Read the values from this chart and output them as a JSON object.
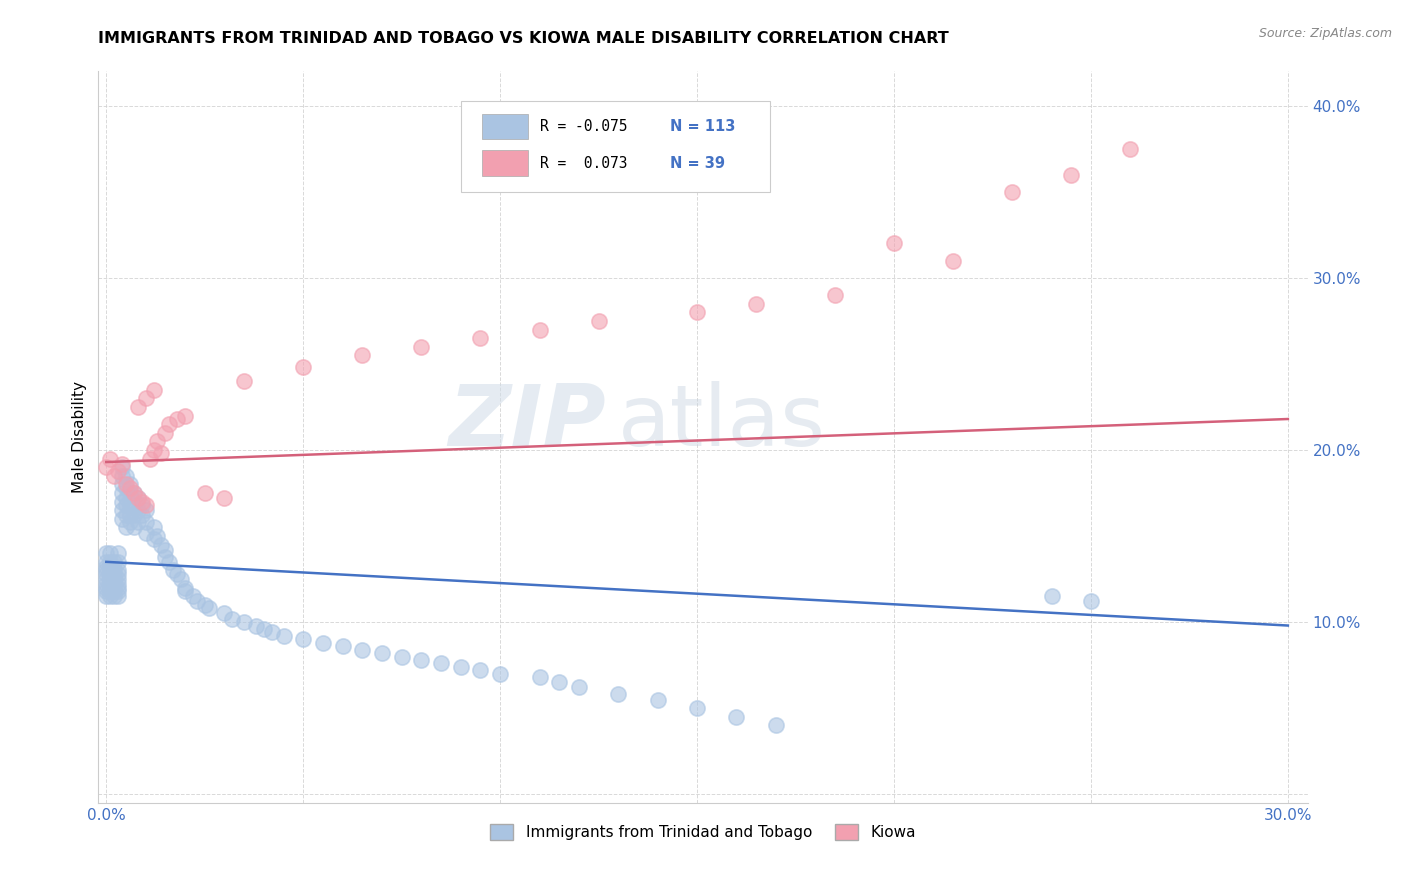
{
  "title": "IMMIGRANTS FROM TRINIDAD AND TOBAGO VS KIOWA MALE DISABILITY CORRELATION CHART",
  "source": "Source: ZipAtlas.com",
  "ylabel_label": "Male Disability",
  "xlim": [
    -0.002,
    0.305
  ],
  "ylim": [
    -0.005,
    0.42
  ],
  "xticks": [
    0.0,
    0.05,
    0.1,
    0.15,
    0.2,
    0.25,
    0.3
  ],
  "xtick_labels": [
    "0.0%",
    "",
    "",
    "",
    "",
    "",
    "30.0%"
  ],
  "yticks": [
    0.0,
    0.1,
    0.2,
    0.3,
    0.4
  ],
  "ytick_labels": [
    "",
    "10.0%",
    "20.0%",
    "30.0%",
    "40.0%"
  ],
  "legend_r1": "R = -0.075",
  "legend_n1": "N = 113",
  "legend_r2": "R =  0.073",
  "legend_n2": "N = 39",
  "blue_color": "#aac4e2",
  "pink_color": "#f2a0b0",
  "line_blue": "#4472c4",
  "line_pink": "#d4607a",
  "watermark_zip": "ZIP",
  "watermark_atlas": "atlas",
  "blue_line_x": [
    0.0,
    0.3
  ],
  "blue_line_y": [
    0.135,
    0.098
  ],
  "pink_line_x": [
    0.0,
    0.3
  ],
  "pink_line_y": [
    0.193,
    0.218
  ],
  "blue_scatter_x": [
    0.0,
    0.0,
    0.0,
    0.0,
    0.0,
    0.0,
    0.0,
    0.0,
    0.0,
    0.0,
    0.001,
    0.001,
    0.001,
    0.001,
    0.001,
    0.001,
    0.001,
    0.001,
    0.001,
    0.001,
    0.002,
    0.002,
    0.002,
    0.002,
    0.002,
    0.002,
    0.002,
    0.002,
    0.003,
    0.003,
    0.003,
    0.003,
    0.003,
    0.003,
    0.003,
    0.003,
    0.003,
    0.004,
    0.004,
    0.004,
    0.004,
    0.004,
    0.004,
    0.004,
    0.005,
    0.005,
    0.005,
    0.005,
    0.005,
    0.005,
    0.006,
    0.006,
    0.006,
    0.006,
    0.006,
    0.007,
    0.007,
    0.007,
    0.007,
    0.008,
    0.008,
    0.008,
    0.009,
    0.009,
    0.01,
    0.01,
    0.01,
    0.012,
    0.012,
    0.013,
    0.014,
    0.015,
    0.015,
    0.016,
    0.017,
    0.018,
    0.019,
    0.02,
    0.02,
    0.022,
    0.023,
    0.025,
    0.026,
    0.03,
    0.032,
    0.035,
    0.038,
    0.04,
    0.042,
    0.045,
    0.05,
    0.055,
    0.06,
    0.065,
    0.07,
    0.075,
    0.08,
    0.085,
    0.09,
    0.095,
    0.1,
    0.11,
    0.115,
    0.12,
    0.13,
    0.14,
    0.15,
    0.16,
    0.17,
    0.24,
    0.25
  ],
  "blue_scatter_y": [
    0.125,
    0.13,
    0.12,
    0.115,
    0.135,
    0.128,
    0.122,
    0.118,
    0.14,
    0.132,
    0.125,
    0.13,
    0.12,
    0.115,
    0.135,
    0.128,
    0.122,
    0.118,
    0.14,
    0.132,
    0.125,
    0.13,
    0.12,
    0.115,
    0.135,
    0.128,
    0.122,
    0.118,
    0.125,
    0.13,
    0.12,
    0.115,
    0.135,
    0.128,
    0.122,
    0.118,
    0.14,
    0.19,
    0.185,
    0.175,
    0.18,
    0.17,
    0.165,
    0.16,
    0.185,
    0.178,
    0.172,
    0.168,
    0.162,
    0.155,
    0.18,
    0.175,
    0.168,
    0.162,
    0.158,
    0.175,
    0.168,
    0.162,
    0.155,
    0.172,
    0.165,
    0.158,
    0.168,
    0.162,
    0.165,
    0.158,
    0.152,
    0.155,
    0.148,
    0.15,
    0.145,
    0.142,
    0.138,
    0.135,
    0.13,
    0.128,
    0.125,
    0.12,
    0.118,
    0.115,
    0.112,
    0.11,
    0.108,
    0.105,
    0.102,
    0.1,
    0.098,
    0.096,
    0.094,
    0.092,
    0.09,
    0.088,
    0.086,
    0.084,
    0.082,
    0.08,
    0.078,
    0.076,
    0.074,
    0.072,
    0.07,
    0.068,
    0.065,
    0.062,
    0.058,
    0.055,
    0.05,
    0.045,
    0.04,
    0.115,
    0.112
  ],
  "pink_scatter_x": [
    0.0,
    0.001,
    0.002,
    0.003,
    0.004,
    0.005,
    0.006,
    0.007,
    0.008,
    0.009,
    0.01,
    0.011,
    0.012,
    0.013,
    0.014,
    0.015,
    0.016,
    0.018,
    0.02,
    0.008,
    0.01,
    0.012,
    0.025,
    0.03,
    0.035,
    0.05,
    0.065,
    0.08,
    0.095,
    0.11,
    0.125,
    0.15,
    0.165,
    0.185,
    0.2,
    0.215,
    0.23,
    0.245,
    0.26
  ],
  "pink_scatter_y": [
    0.19,
    0.195,
    0.185,
    0.188,
    0.192,
    0.18,
    0.178,
    0.175,
    0.172,
    0.17,
    0.168,
    0.195,
    0.2,
    0.205,
    0.198,
    0.21,
    0.215,
    0.218,
    0.22,
    0.225,
    0.23,
    0.235,
    0.175,
    0.172,
    0.24,
    0.248,
    0.255,
    0.26,
    0.265,
    0.27,
    0.275,
    0.28,
    0.285,
    0.29,
    0.32,
    0.31,
    0.35,
    0.36,
    0.375
  ]
}
